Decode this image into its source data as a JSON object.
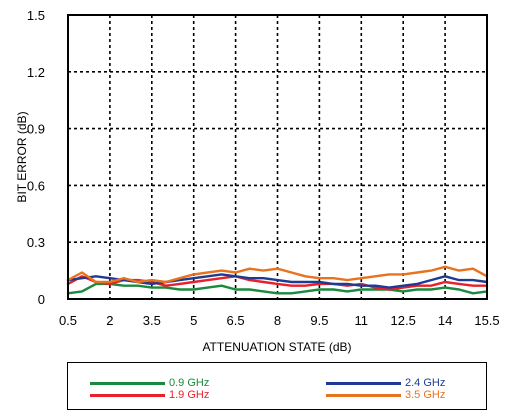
{
  "chart_data": {
    "type": "line",
    "xlabel": "ATTENUATION STATE (dB)",
    "ylabel": "BIT ERROR (dB)",
    "xlim": [
      0.5,
      15.5
    ],
    "ylim": [
      0,
      1.5
    ],
    "xticks": [
      "0.5",
      "2",
      "3.5",
      "5",
      "6.5",
      "8",
      "9.5",
      "11",
      "12.5",
      "14",
      "15.5"
    ],
    "yticks": [
      "0",
      "0.3",
      "0.6",
      "0.9",
      "1.2",
      "1.5"
    ],
    "grid": true,
    "series": [
      {
        "name": "0.9 GHz",
        "color": "#1a8a3c",
        "x": [
          0.5,
          1.0,
          1.5,
          2.0,
          2.5,
          3.0,
          3.5,
          4.0,
          4.5,
          5.0,
          5.5,
          6.0,
          6.5,
          7.0,
          7.5,
          8.0,
          8.5,
          9.0,
          9.5,
          10.0,
          10.5,
          11.0,
          11.5,
          12.0,
          12.5,
          13.0,
          13.5,
          14.0,
          14.5,
          15.0,
          15.5
        ],
        "y": [
          0.03,
          0.04,
          0.08,
          0.08,
          0.07,
          0.07,
          0.06,
          0.06,
          0.05,
          0.05,
          0.06,
          0.07,
          0.05,
          0.05,
          0.04,
          0.03,
          0.03,
          0.04,
          0.05,
          0.05,
          0.04,
          0.05,
          0.05,
          0.05,
          0.04,
          0.05,
          0.05,
          0.06,
          0.05,
          0.03,
          0.04
        ]
      },
      {
        "name": "1.9 GHz",
        "color": "#e8202a",
        "x": [
          0.5,
          1.0,
          1.5,
          2.0,
          2.5,
          3.0,
          3.5,
          4.0,
          4.5,
          5.0,
          5.5,
          6.0,
          6.5,
          7.0,
          7.5,
          8.0,
          8.5,
          9.0,
          9.5,
          10.0,
          10.5,
          11.0,
          11.5,
          12.0,
          12.5,
          13.0,
          13.5,
          14.0,
          14.5,
          15.0,
          15.5
        ],
        "y": [
          0.08,
          0.12,
          0.09,
          0.08,
          0.1,
          0.1,
          0.09,
          0.07,
          0.08,
          0.09,
          0.1,
          0.11,
          0.12,
          0.1,
          0.09,
          0.08,
          0.07,
          0.07,
          0.08,
          0.08,
          0.07,
          0.08,
          0.06,
          0.05,
          0.06,
          0.07,
          0.07,
          0.09,
          0.08,
          0.07,
          0.07
        ]
      },
      {
        "name": "2.4 GHz",
        "color": "#1f3a93",
        "x": [
          0.5,
          1.0,
          1.5,
          2.0,
          2.5,
          3.0,
          3.5,
          4.0,
          4.5,
          5.0,
          5.5,
          6.0,
          6.5,
          7.0,
          7.5,
          8.0,
          8.5,
          9.0,
          9.5,
          10.0,
          10.5,
          11.0,
          11.5,
          12.0,
          12.5,
          13.0,
          13.5,
          14.0,
          14.5,
          15.0,
          15.5
        ],
        "y": [
          0.1,
          0.11,
          0.12,
          0.11,
          0.1,
          0.09,
          0.08,
          0.09,
          0.1,
          0.11,
          0.12,
          0.13,
          0.12,
          0.11,
          0.11,
          0.1,
          0.09,
          0.09,
          0.09,
          0.08,
          0.08,
          0.07,
          0.07,
          0.06,
          0.07,
          0.08,
          0.1,
          0.12,
          0.1,
          0.1,
          0.09
        ]
      },
      {
        "name": "3.5 GHz",
        "color": "#e8731f",
        "x": [
          0.5,
          1.0,
          1.5,
          2.0,
          2.5,
          3.0,
          3.5,
          4.0,
          4.5,
          5.0,
          5.5,
          6.0,
          6.5,
          7.0,
          7.5,
          8.0,
          8.5,
          9.0,
          9.5,
          10.0,
          10.5,
          11.0,
          11.5,
          12.0,
          12.5,
          13.0,
          13.5,
          14.0,
          14.5,
          15.0,
          15.5
        ],
        "y": [
          0.1,
          0.14,
          0.09,
          0.09,
          0.11,
          0.09,
          0.1,
          0.09,
          0.11,
          0.13,
          0.14,
          0.15,
          0.14,
          0.16,
          0.15,
          0.16,
          0.14,
          0.12,
          0.11,
          0.11,
          0.1,
          0.11,
          0.12,
          0.13,
          0.13,
          0.14,
          0.15,
          0.17,
          0.15,
          0.16,
          0.12
        ]
      }
    ]
  },
  "legend": {
    "items": [
      {
        "label": "0.9 GHz",
        "color": "#1a8a3c"
      },
      {
        "label": "1.9 GHz",
        "color": "#e8202a"
      },
      {
        "label": "2.4 GHz",
        "color": "#1f3a93"
      },
      {
        "label": "3.5 GHz",
        "color": "#e8731f"
      }
    ]
  }
}
